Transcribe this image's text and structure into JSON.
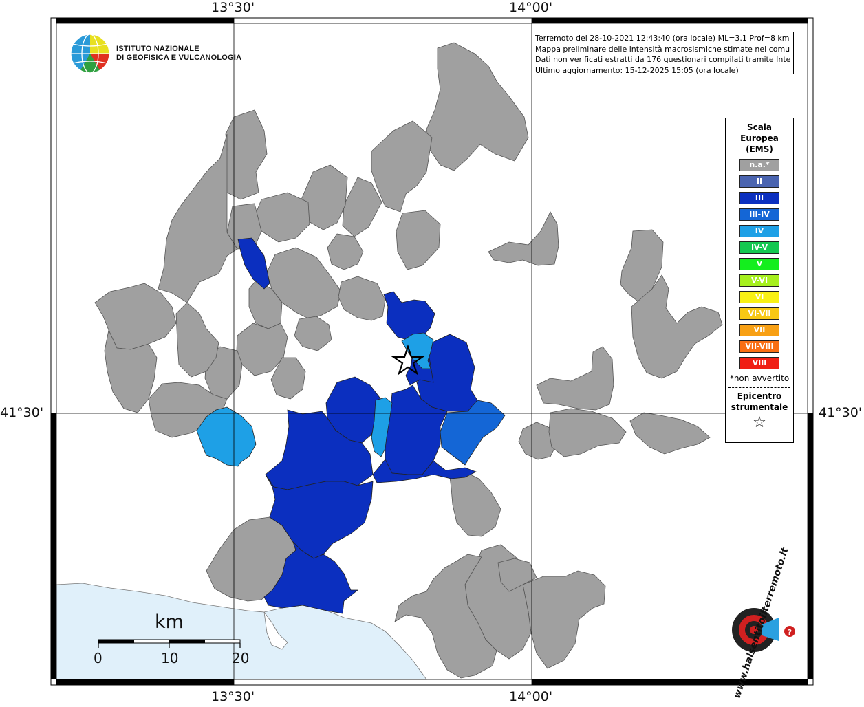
{
  "map": {
    "top_labels": [
      "13°30'",
      "14°00'"
    ],
    "bottom_labels": [
      "13°30'",
      "14°00'"
    ],
    "left_labels": [
      "41°30'"
    ],
    "right_labels": [
      "41°30'"
    ]
  },
  "info": {
    "line1": "Terremoto del 28-10-2021 12:43:40 (ora locale) ML=3.1 Prof=8 km",
    "line2": "Mappa preliminare delle intensità macrosismiche stimate nei comuni",
    "line3": "Dati non verificati estratti da 176 questionari compilati tramite Internet.",
    "line4": "Ultimo aggiornamento: 15-12-2025 15:05 (ora locale)"
  },
  "logo": {
    "line1": "ISTITUTO NAZIONALE",
    "line2": "DI GEOFISICA E VULCANOLOGIA"
  },
  "legend": {
    "title": "Scala Europea (EMS)",
    "items": [
      {
        "label": "n.a.*",
        "color": "#a0a0a0"
      },
      {
        "label": "II",
        "color": "#4a64b0"
      },
      {
        "label": "III",
        "color": "#0b2fbf"
      },
      {
        "label": "III-IV",
        "color": "#1466d6"
      },
      {
        "label": "IV",
        "color": "#1ea0e6"
      },
      {
        "label": "IV-V",
        "color": "#14c850"
      },
      {
        "label": "V",
        "color": "#14ee1e"
      },
      {
        "label": "V-VI",
        "color": "#a6f01e"
      },
      {
        "label": "VI",
        "color": "#f8f014"
      },
      {
        "label": "VI-VII",
        "color": "#f8c814"
      },
      {
        "label": "VII",
        "color": "#f8a014"
      },
      {
        "label": "VII-VIII",
        "color": "#f86e14"
      },
      {
        "label": "VIII",
        "color": "#f01e14"
      }
    ],
    "note": "*non avvertito",
    "epicenter_label": "Epicentro strumentale",
    "epicenter_symbol": "☆"
  },
  "scale": {
    "unit": "km",
    "ticks": [
      "0",
      "10",
      "20"
    ]
  },
  "colors": {
    "na": "#a0a0a0",
    "III": "#0b2fbf",
    "III-IV": "#1466d6",
    "IV": "#1ea0e6",
    "sea": "#e0f0fa"
  },
  "watermark": "www.haisentitoilterremoto.it"
}
